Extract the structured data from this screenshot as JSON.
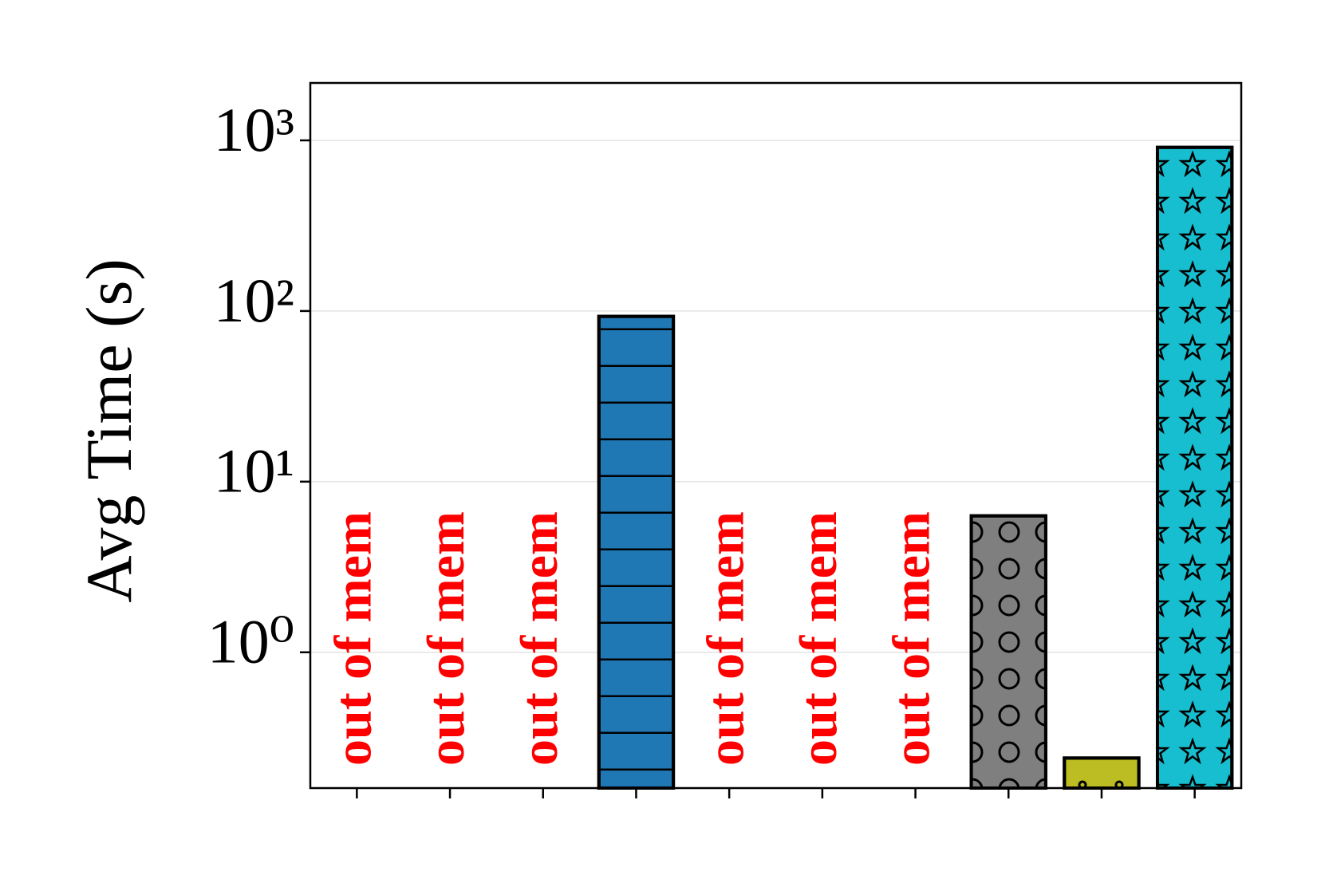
{
  "chart_data": {
    "type": "bar",
    "y_label": "Avg Time (s)",
    "log_y": true,
    "grid": true,
    "categories": [
      null,
      null,
      null,
      null,
      null,
      null,
      null,
      null,
      null,
      null
    ],
    "values": [
      null,
      null,
      null,
      93,
      null,
      null,
      null,
      6.3,
      0.24,
      910
    ],
    "colors": [
      null,
      null,
      null,
      "#1f77b4",
      null,
      null,
      null,
      "#7f7f7f",
      "#bcbd22",
      "#17becf"
    ],
    "hatches": [
      null,
      null,
      null,
      "-",
      null,
      null,
      null,
      "o",
      ".",
      "*"
    ],
    "annotations": [
      "out of mem",
      "out of mem",
      "out of mem",
      null,
      "out of mem",
      "out of mem",
      "out of mem",
      null,
      null,
      null
    ],
    "annotation_color": "#ff0000",
    "ylim": [
      0.16,
      2170
    ],
    "yticks": [
      {
        "value": 1,
        "label": "10⁰"
      },
      {
        "value": 10,
        "label": "10¹"
      },
      {
        "value": 100,
        "label": "10²"
      },
      {
        "value": 1000,
        "label": "10³"
      }
    ]
  }
}
